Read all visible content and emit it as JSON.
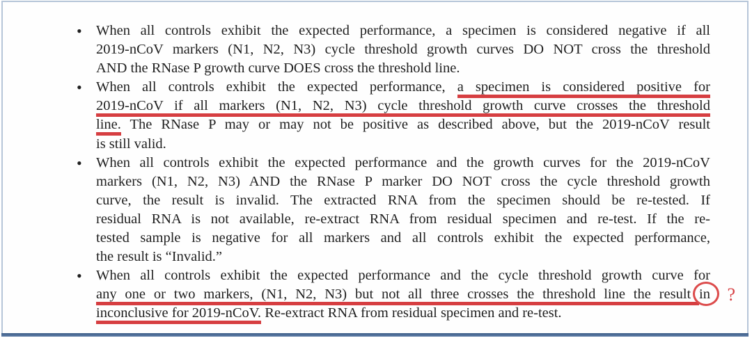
{
  "colors": {
    "annotation_red": "#d63e41",
    "circle_red": "#dc4b4b",
    "frame_border": "#b6c5d8",
    "bottom_bar": "#5e7da5",
    "text": "#1f1f1f",
    "background": "#ffffff"
  },
  "annotations": {
    "bullet_glyph": "•",
    "question_mark": "?"
  },
  "bullets": [
    {
      "lines": [
        {
          "segments": [
            {
              "t": "When all controls exhibit the expected performance, a specimen is considered negative if all"
            }
          ]
        },
        {
          "segments": [
            {
              "t": "2019-nCoV markers (N1, N2, N3) cycle threshold growth curves DO NOT cross the threshold"
            }
          ]
        },
        {
          "segments": [
            {
              "t": "AND the RNase P growth curve DOES cross the threshold line."
            }
          ]
        }
      ]
    },
    {
      "lines": [
        {
          "segments": [
            {
              "t": "When all controls exhibit the expected performance, "
            },
            {
              "t": "a specimen is considered positive for",
              "u": true
            }
          ]
        },
        {
          "segments": [
            {
              "t": "2019-nCoV if all markers (N1, N2, N3) cycle threshold growth curve crosses the threshold",
              "u": true
            }
          ]
        },
        {
          "segments": [
            {
              "t": "line.",
              "u": true
            },
            {
              "t": " The RNase P may or may not be positive as described above, but the 2019-nCoV result"
            }
          ]
        },
        {
          "segments": [
            {
              "t": "is still valid."
            }
          ]
        }
      ]
    },
    {
      "lines": [
        {
          "segments": [
            {
              "t": "When all controls exhibit the expected performance and the growth curves for the 2019-nCoV"
            }
          ]
        },
        {
          "segments": [
            {
              "t": "markers (N1, N2, N3) AND the RNase P marker DO NOT cross the cycle threshold growth"
            }
          ]
        },
        {
          "segments": [
            {
              "t": "curve, the result is invalid. The extracted RNA from the specimen should be re-tested. If"
            }
          ]
        },
        {
          "segments": [
            {
              "t": "residual RNA is not available, re-extract RNA from residual specimen and re-test. If the re-"
            }
          ]
        },
        {
          "segments": [
            {
              "t": "tested sample is negative for all markers and all controls exhibit the expected performance,"
            }
          ]
        },
        {
          "segments": [
            {
              "t": "the result is “Invalid.”"
            }
          ]
        }
      ]
    },
    {
      "lines": [
        {
          "segments": [
            {
              "t": "When all controls exhibit the expected performance and the cycle threshold growth curve for"
            }
          ]
        },
        {
          "segments": [
            {
              "t": "any one or two markers, (N1, N2, N3) but not all three crosses the threshold line the result ",
              "u": true
            },
            {
              "t": "in",
              "circled": true
            }
          ],
          "qmark": true
        },
        {
          "segments": [
            {
              "t": "inconclusive for 2019-nCoV.",
              "u": true
            },
            {
              "t": " Re-extract RNA from residual specimen and re-test."
            }
          ]
        }
      ]
    }
  ]
}
